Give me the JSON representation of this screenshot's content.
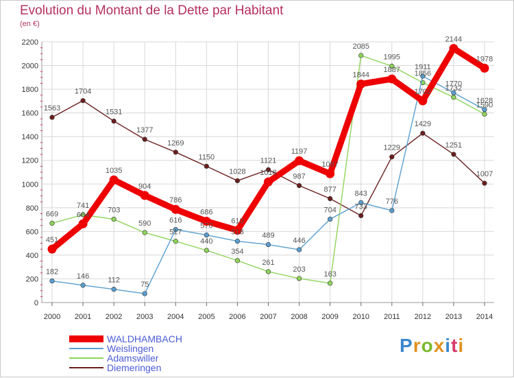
{
  "header": {
    "title": "Evolution du Montant de la Dette par Habitant",
    "subtitle": "(en €)"
  },
  "brand": {
    "letters": [
      "P",
      "r",
      "o",
      "x",
      "i",
      "t",
      "i"
    ],
    "colors": [
      "#3a87d0",
      "#e0901f",
      "#7ab82e",
      "#e0901f",
      "#3a87d0",
      "#d83a6a",
      "#e0901f"
    ]
  },
  "chart_data": {
    "type": "line",
    "title": "Evolution du Montant de la Dette par Habitant",
    "subtitle": "(en €)",
    "x": [
      "2000",
      "2001",
      "2002",
      "2003",
      "2004",
      "2005",
      "2006",
      "2007",
      "2008",
      "2009",
      "2010",
      "2011",
      "2012",
      "2013",
      "2014"
    ],
    "ylim": [
      0,
      2200
    ],
    "yticks": [
      "0",
      "200",
      "400",
      "600",
      "800",
      "1000",
      "1200",
      "1400",
      "1600",
      "1800",
      "2000",
      "2200"
    ],
    "grid": true,
    "legend_position": "bottom-left",
    "series": [
      {
        "name": "Diemeringen",
        "color": "#6b1e1e",
        "values": [
          1563,
          1704,
          1531,
          1377,
          1269,
          1150,
          1028,
          1121,
          987,
          877,
          733,
          1229,
          1429,
          1251,
          1007
        ]
      },
      {
        "name": "Adamswiller",
        "color": "#8fd45a",
        "values": [
          669,
          741,
          703,
          590,
          517,
          440,
          354,
          261,
          203,
          163,
          2085,
          1995,
          1856,
          1732,
          1590
        ]
      },
      {
        "name": "Weislingen",
        "color": "#5a9fd0",
        "values": [
          182,
          146,
          112,
          75,
          616,
          570,
          518,
          489,
          446,
          704,
          843,
          776,
          1911,
          1770,
          1628
        ]
      },
      {
        "name": "WALDHAMBACH",
        "color": "#ee0000",
        "values": [
          451,
          664,
          1035,
          904,
          786,
          686,
          610,
          1018,
          1197,
          1087,
          1844,
          1887,
          1702,
          2144,
          1978
        ]
      }
    ],
    "legend_order": [
      "WALDHAMBACH",
      "Weislingen",
      "Adamswiller",
      "Diemeringen"
    ]
  }
}
